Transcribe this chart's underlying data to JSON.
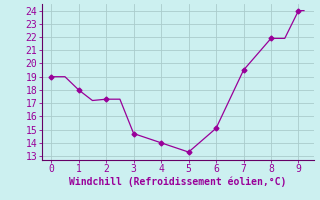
{
  "x": [
    0,
    0.5,
    1,
    1.5,
    2,
    2.5,
    3,
    4,
    5,
    6,
    7,
    8,
    8.5,
    9,
    9.2
  ],
  "y": [
    19,
    19,
    18,
    17.2,
    17.3,
    17.3,
    14.7,
    14.0,
    13.3,
    15.1,
    19.5,
    21.9,
    21.9,
    24.0,
    24.0
  ],
  "markers_x": [
    0,
    1,
    2,
    3,
    4,
    5,
    6,
    7,
    8,
    9
  ],
  "markers_y": [
    19,
    18,
    17.3,
    14.7,
    14.0,
    13.3,
    15.1,
    19.5,
    21.9,
    24.0
  ],
  "line_color": "#990099",
  "marker_color": "#990099",
  "bg_color": "#ccf0f0",
  "grid_color": "#aacccc",
  "xlabel": "Windchill (Refroidissement éolien,°C)",
  "xlabel_color": "#990099",
  "tick_color": "#990099",
  "spine_color": "#660066",
  "xlim": [
    -0.35,
    9.55
  ],
  "ylim": [
    12.7,
    24.5
  ],
  "yticks": [
    13,
    14,
    15,
    16,
    17,
    18,
    19,
    20,
    21,
    22,
    23,
    24
  ],
  "xticks": [
    0,
    1,
    2,
    3,
    4,
    5,
    6,
    7,
    8,
    9
  ],
  "xlabel_fontsize": 7,
  "tick_fontsize": 7
}
